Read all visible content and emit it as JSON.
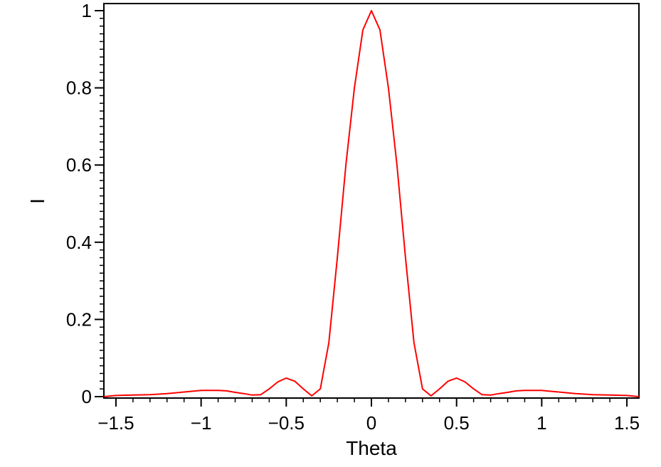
{
  "chart_data": {
    "type": "line",
    "title": "",
    "xlabel": "Theta",
    "ylabel": "I",
    "xlim": [
      -1.5708,
      1.5708
    ],
    "ylim": [
      0,
      1
    ],
    "grid": false,
    "legend": "none",
    "x_ticks": [
      -1.5,
      -1,
      -0.5,
      0,
      0.5,
      1,
      1.5
    ],
    "x_tick_labels": [
      "−1.5",
      "−1",
      "−0.5",
      "0",
      "0.5",
      "1",
      "1.5"
    ],
    "y_ticks": [
      0,
      0.2,
      0.4,
      0.6,
      0.8,
      1
    ],
    "y_tick_labels": [
      "0",
      "0.2",
      "0.4",
      "0.6",
      "0.8",
      "1"
    ],
    "series": [
      {
        "color": "#ff0000",
        "x": [
          -1.57,
          -1.5,
          -1.4,
          -1.3,
          -1.2,
          -1.1,
          -1.0,
          -0.95,
          -0.9,
          -0.85,
          -0.8,
          -0.75,
          -0.7,
          -0.65,
          -0.6,
          -0.55,
          -0.5,
          -0.45,
          -0.4,
          -0.35,
          -0.3,
          -0.25,
          -0.2,
          -0.15,
          -0.1,
          -0.05,
          0.0,
          0.05,
          0.1,
          0.15,
          0.2,
          0.25,
          0.3,
          0.35,
          0.4,
          0.45,
          0.5,
          0.55,
          0.6,
          0.65,
          0.7,
          0.75,
          0.8,
          0.85,
          0.9,
          0.95,
          1.0,
          1.1,
          1.2,
          1.3,
          1.4,
          1.5,
          1.57
        ],
        "values": [
          0.0,
          0.003,
          0.004,
          0.005,
          0.008,
          0.012,
          0.016,
          0.016,
          0.016,
          0.015,
          0.011,
          0.008,
          0.004,
          0.005,
          0.02,
          0.038,
          0.048,
          0.04,
          0.02,
          0.002,
          0.02,
          0.14,
          0.36,
          0.6,
          0.8,
          0.95,
          1.0,
          0.95,
          0.8,
          0.6,
          0.36,
          0.14,
          0.02,
          0.002,
          0.02,
          0.04,
          0.048,
          0.038,
          0.02,
          0.005,
          0.004,
          0.008,
          0.011,
          0.015,
          0.016,
          0.016,
          0.016,
          0.012,
          0.008,
          0.005,
          0.004,
          0.003,
          0.0
        ]
      }
    ]
  }
}
